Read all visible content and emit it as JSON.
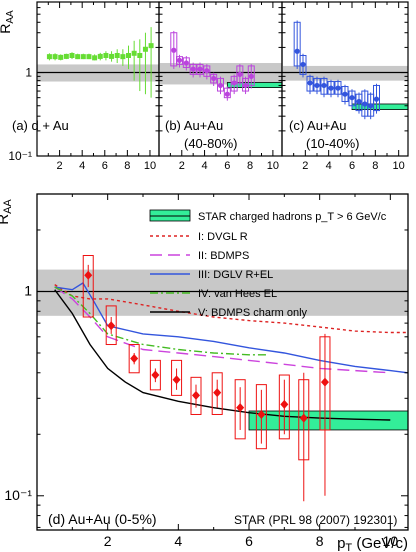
{
  "chart_data": [
    {
      "type": "scatter",
      "panel": "(a) d + Au",
      "ylabel": "R_AA",
      "xlim": [
        0,
        10.8
      ],
      "ylim": [
        0.1,
        7
      ],
      "yscale": "log",
      "x_ticks": [
        2,
        4,
        6,
        8,
        10
      ],
      "y_tick_labels": [
        "10⁻¹",
        "1"
      ],
      "label": "(a) d + Au",
      "series": [
        {
          "name": "d + Au",
          "color": "#66dd33",
          "x": [
            1.1,
            1.6,
            2.1,
            2.6,
            3.1,
            3.6,
            4.1,
            4.6,
            5.1,
            5.6,
            6.1,
            6.6,
            7.1,
            7.6,
            8.1,
            8.6,
            9.1,
            9.6,
            10.1
          ],
          "y": [
            1.55,
            1.55,
            1.52,
            1.56,
            1.6,
            1.55,
            1.55,
            1.55,
            1.5,
            1.56,
            1.6,
            1.56,
            1.6,
            1.55,
            1.6,
            1.7,
            1.6,
            1.9,
            2.1
          ],
          "err_low": [
            1.4,
            1.4,
            1.4,
            1.45,
            1.45,
            1.45,
            1.45,
            1.45,
            1.4,
            1.4,
            1.4,
            1.35,
            1.3,
            1.2,
            1.1,
            0.8,
            0.6,
            0.55,
            0.5
          ],
          "err_high": [
            1.7,
            1.7,
            1.65,
            1.68,
            1.75,
            1.68,
            1.68,
            1.68,
            1.65,
            1.72,
            1.8,
            1.8,
            1.9,
            1.9,
            2.1,
            2.4,
            2.5,
            3.0,
            3.5
          ]
        }
      ],
      "band": {
        "low": 0.78,
        "high": 1.25,
        "color": "#c8c8c8"
      }
    },
    {
      "type": "scatter",
      "panel": "(b) Au+Au (40-80%)",
      "xlim": [
        0,
        10.8
      ],
      "ylim": [
        0.1,
        7
      ],
      "yscale": "log",
      "x_ticks": [
        2,
        4,
        6,
        8,
        10
      ],
      "label_line1": "(b) Au+Au",
      "label_line2": "(40-80%)",
      "series": [
        {
          "name": "Au+Au 40-80%",
          "color": "#bb44dd",
          "x": [
            1.3,
            1.8,
            2.4,
            3.0,
            3.6,
            4.2,
            4.8,
            5.4,
            6.0,
            6.6,
            7.1,
            7.6,
            8.1
          ],
          "y": [
            1.85,
            1.4,
            1.3,
            1.1,
            1.1,
            1.05,
            0.85,
            0.7,
            0.55,
            0.75,
            0.95,
            0.7,
            0.9
          ],
          "box_low": [
            1.2,
            1.25,
            1.15,
            0.95,
            0.95,
            0.9,
            0.75,
            0.6,
            0.5,
            0.6,
            0.75,
            0.6,
            0.7
          ],
          "box_high": [
            3.0,
            1.55,
            1.5,
            1.25,
            1.25,
            1.2,
            0.95,
            0.85,
            0.65,
            0.9,
            1.2,
            0.85,
            1.2
          ]
        }
      ],
      "band": {
        "low": 0.72,
        "high": 1.3,
        "color": "#c8c8c8"
      },
      "star_band": {
        "x0": 6.0,
        "x1": 10.8,
        "low": 0.66,
        "high": 0.76,
        "color": "#33ee99"
      }
    },
    {
      "type": "scatter",
      "panel": "(c) Au+Au (10-40%)",
      "xlim": [
        0,
        10.8
      ],
      "ylim": [
        0.1,
        7
      ],
      "yscale": "log",
      "x_ticks": [
        2,
        4,
        6,
        8,
        10
      ],
      "label_line1": "(c) Au+Au",
      "label_line2": "(10-40%)",
      "series": [
        {
          "name": "Au+Au 10-40%",
          "color": "#3355dd",
          "x": [
            1.3,
            1.8,
            2.4,
            3.0,
            3.6,
            4.2,
            4.8,
            5.4,
            6.0,
            6.6,
            7.1,
            7.6,
            8.1
          ],
          "y": [
            1.8,
            1.25,
            0.75,
            0.7,
            0.7,
            0.65,
            0.65,
            0.55,
            0.5,
            0.45,
            0.42,
            0.4,
            0.48
          ],
          "box_low": [
            1.2,
            0.95,
            0.6,
            0.6,
            0.55,
            0.55,
            0.55,
            0.45,
            0.4,
            0.35,
            0.3,
            0.3,
            0.35
          ],
          "box_high": [
            4.0,
            1.6,
            0.9,
            0.85,
            0.85,
            0.78,
            0.78,
            0.68,
            0.6,
            0.55,
            0.6,
            0.55,
            0.7
          ]
        }
      ],
      "band": {
        "low": 0.8,
        "high": 1.2,
        "color": "#c8c8c8"
      },
      "star_band": {
        "x0": 6.0,
        "x1": 10.8,
        "low": 0.36,
        "high": 0.42,
        "color": "#33ee99"
      }
    },
    {
      "type": "line",
      "panel": "(d) Au+Au (0-5%)",
      "xlabel": "p_T (GeV/c)",
      "ylabel": "R_AA",
      "xlim": [
        0,
        10.5
      ],
      "ylim": [
        0.068,
        3.0
      ],
      "yscale": "log",
      "x_ticks": [
        2,
        4,
        6,
        8,
        10
      ],
      "y_tick_labels": [
        "10⁻¹",
        "1"
      ],
      "label": "(d) Au+Au (0-5%)",
      "citation": "STAR (PRL 98 (2007) 192301)",
      "legend_position": "top-right",
      "band": {
        "low": 0.76,
        "high": 1.28,
        "color": "#c8c8c8"
      },
      "star_band": {
        "x0": 6.0,
        "x1": 10.5,
        "low": 0.21,
        "high": 0.26,
        "color": "#33ee99",
        "legend": "STAR charged hadrons p_T > 6 GeV/c"
      },
      "series": [
        {
          "name": "I: DVGL R",
          "color": "#dd2222",
          "dash": "3,3",
          "x": [
            0.5,
            1.0,
            1.5,
            2.0,
            3.0,
            4.0,
            5.0,
            6.0,
            7.0,
            8.0,
            9.0,
            10.0,
            10.5
          ],
          "y": [
            1.08,
            0.95,
            0.92,
            0.92,
            0.86,
            0.8,
            0.75,
            0.72,
            0.7,
            0.67,
            0.64,
            0.63,
            0.63
          ]
        },
        {
          "name": "II: BDMPS",
          "color": "#cc44dd",
          "dash": "12,6",
          "x": [
            0.5,
            1.0,
            1.5,
            2.0,
            3.0,
            4.0,
            5.0,
            6.0,
            7.0,
            8.0,
            9.0,
            10.0
          ],
          "y": [
            1.05,
            0.92,
            0.75,
            0.6,
            0.52,
            0.5,
            0.48,
            0.46,
            0.44,
            0.42,
            0.41,
            0.4
          ]
        },
        {
          "name": "III: DGLV R+EL",
          "color": "#3355dd",
          "dash": "",
          "x": [
            0.5,
            1.0,
            1.3,
            1.6,
            2.0,
            3.0,
            4.0,
            5.0,
            6.0,
            7.0,
            8.0,
            9.0,
            10.0,
            10.5
          ],
          "y": [
            1.05,
            1.02,
            1.1,
            0.9,
            0.68,
            0.62,
            0.6,
            0.57,
            0.53,
            0.5,
            0.46,
            0.43,
            0.41,
            0.4
          ]
        },
        {
          "name": "IV: van Hees EL",
          "color": "#44bb22",
          "dash": "8,3,2,3",
          "x": [
            0.5,
            1.0,
            1.5,
            2.0,
            3.0,
            4.0,
            5.0,
            6.0,
            6.5
          ],
          "y": [
            1.05,
            0.95,
            0.78,
            0.62,
            0.55,
            0.52,
            0.5,
            0.49,
            0.49
          ]
        },
        {
          "name": "V: BDMPS charm only",
          "color": "#000000",
          "dash": "",
          "x": [
            0.5,
            1.0,
            1.5,
            2.0,
            2.5,
            3.0,
            4.0,
            5.0,
            6.0,
            7.0,
            8.0,
            9.0,
            10.0
          ],
          "y": [
            1.02,
            0.78,
            0.55,
            0.42,
            0.36,
            0.32,
            0.29,
            0.27,
            0.255,
            0.245,
            0.24,
            0.237,
            0.235
          ]
        },
        {
          "name": "Au+Au 0-5%",
          "color": "#ee1111",
          "type": "points",
          "x": [
            1.45,
            2.1,
            2.75,
            3.35,
            3.95,
            4.5,
            5.1,
            5.75,
            6.35,
            7.0,
            7.55,
            8.15
          ],
          "y": [
            1.2,
            0.68,
            0.47,
            0.39,
            0.37,
            0.31,
            0.32,
            0.27,
            0.25,
            0.28,
            0.24,
            0.36
          ],
          "box_low": [
            0.75,
            0.55,
            0.4,
            0.33,
            0.31,
            0.25,
            0.25,
            0.19,
            0.17,
            0.19,
            0.15,
            0.21
          ],
          "box_high": [
            1.5,
            0.85,
            0.55,
            0.46,
            0.46,
            0.38,
            0.4,
            0.37,
            0.35,
            0.39,
            0.37,
            0.6
          ],
          "err_low": [
            1.05,
            0.62,
            0.44,
            0.36,
            0.33,
            0.27,
            0.27,
            0.21,
            0.18,
            0.2,
            0.094,
            0.1
          ],
          "err_high": [
            1.35,
            0.75,
            0.5,
            0.42,
            0.42,
            0.35,
            0.37,
            0.34,
            0.33,
            0.37,
            0.4,
            0.62
          ]
        }
      ]
    }
  ]
}
